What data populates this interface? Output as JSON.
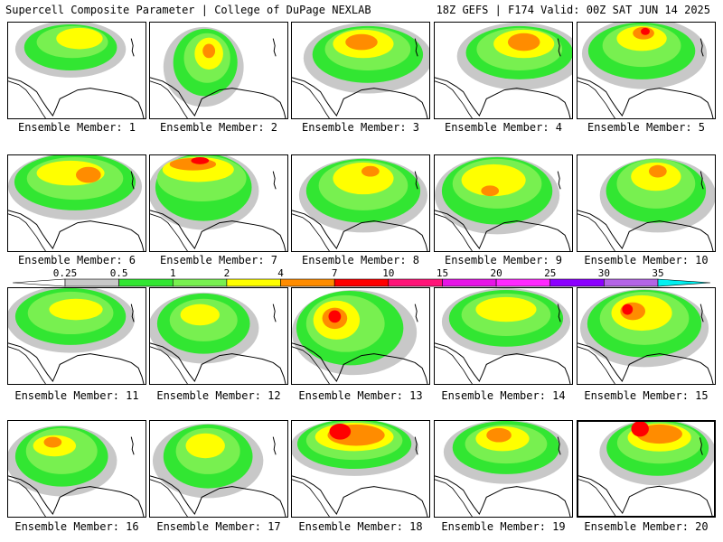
{
  "header": {
    "left_title": "Supercell Composite Parameter | College of DuPage NEXLAB",
    "right_title": "18Z GEFS | F174 Valid: 00Z SAT JUN 14 2025"
  },
  "panels": [
    {
      "label": "Ensemble Member: 1"
    },
    {
      "label": "Ensemble Member: 2"
    },
    {
      "label": "Ensemble Member: 3"
    },
    {
      "label": "Ensemble Member: 4"
    },
    {
      "label": "Ensemble Member: 5"
    },
    {
      "label": "Ensemble Member: 6"
    },
    {
      "label": "Ensemble Member: 7"
    },
    {
      "label": "Ensemble Member: 8"
    },
    {
      "label": "Ensemble Member: 9"
    },
    {
      "label": "Ensemble Member: 10"
    },
    {
      "label": "Ensemble Member: 11"
    },
    {
      "label": "Ensemble Member: 12"
    },
    {
      "label": "Ensemble Member: 13"
    },
    {
      "label": "Ensemble Member: 14"
    },
    {
      "label": "Ensemble Member: 15"
    },
    {
      "label": "Ensemble Member: 16"
    },
    {
      "label": "Ensemble Member: 17"
    },
    {
      "label": "Ensemble Member: 18"
    },
    {
      "label": "Ensemble Member: 19"
    },
    {
      "label": "Ensemble Member: 20"
    }
  ],
  "colorbar": {
    "ticks": [
      "0.25",
      "0.5",
      "1",
      "2",
      "4",
      "7",
      "10",
      "15",
      "20",
      "25",
      "30",
      "35"
    ],
    "colors": [
      "#ffffff",
      "#c8c8c8",
      "#32e632",
      "#78f050",
      "#ffff00",
      "#ff8c00",
      "#ff0000",
      "#ff1478",
      "#e614e6",
      "#ff28ff",
      "#8c00ff",
      "#b464e6",
      "#00f0f0"
    ]
  },
  "map_colors": {
    "gray": "#c8c8c8",
    "green": "#32e632",
    "light_green": "#78f050",
    "yellow": "#ffff00",
    "orange": "#ff8c00",
    "red": "#ff0000"
  }
}
